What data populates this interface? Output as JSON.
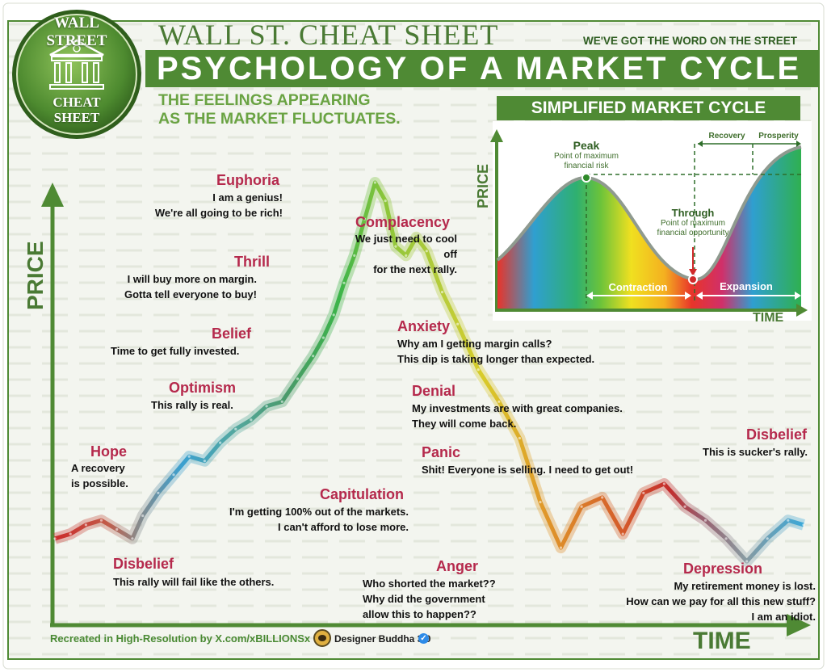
{
  "header": {
    "brand_title": "WALL ST. CHEAT SHEET",
    "tagline": "WE'VE GOT THE WORD ON THE STREET",
    "main_title": "PSYCHOLOGY OF A MARKET CYCLE",
    "subtitle_line1": "THE FEELINGS APPEARING",
    "subtitle_line2": "AS THE MARKET FLUCTUATES."
  },
  "logo": {
    "top_text": "WALL STREET",
    "bottom_line1": "CHEAT",
    "bottom_line2": "SHEET",
    "icon": "building-columns-icon"
  },
  "colors": {
    "brand_green": "#4f8a34",
    "dark_green": "#2f5e22",
    "phase_red": "#b5294c",
    "cycle_start": "#cc2b2b",
    "cycle_peak": "#3cb44a",
    "cycle_low": "#d4c424"
  },
  "chart_data": [
    {
      "type": "line",
      "x_unit": "time (unlabeled)",
      "y_unit": "price (unlabeled)",
      "xlabel": "TIME",
      "ylabel": "PRICE",
      "grid": false,
      "series": [
        {
          "x": [
            0,
            3,
            6,
            9,
            12,
            15,
            17,
            20,
            23,
            26,
            29,
            32,
            35,
            38,
            41,
            44,
            47,
            50,
            52,
            54,
            56,
            58,
            60,
            62,
            64,
            66,
            68,
            70,
            72,
            75,
            78,
            82,
            86,
            90,
            94,
            98,
            102,
            106,
            110,
            114,
            118,
            122,
            126,
            130,
            134,
            138,
            142,
            145
          ],
          "y": [
            8,
            9,
            11,
            12,
            10,
            8,
            13,
            18,
            22,
            26,
            25,
            29,
            32,
            34,
            37,
            38,
            43,
            48,
            52,
            57,
            64,
            70,
            78,
            86,
            82,
            72,
            70,
            74,
            71,
            62,
            55,
            45,
            38,
            30,
            16,
            6,
            15,
            17,
            9,
            18,
            20,
            15,
            12,
            8,
            3,
            8,
            12,
            11
          ]
        }
      ]
    },
    {
      "type": "area",
      "title": "SIMPLIFIED MARKET CYCLE",
      "xlabel": "TIME",
      "ylabel": "PRICE",
      "grid": false,
      "points": [
        {
          "name": "Peak",
          "note": "Point of maximum financial risk"
        },
        {
          "name": "Through",
          "note": "Point of maximum financial opportunity"
        }
      ],
      "phases_bottom": [
        "Contraction",
        "Expansion"
      ],
      "phases_top": [
        "Recovery",
        "Prosperity"
      ]
    }
  ],
  "phases": [
    {
      "name": "Disbelief",
      "quote": [
        "This rally will fail like the others."
      ]
    },
    {
      "name": "Hope",
      "quote": [
        "A recovery",
        "is possible."
      ]
    },
    {
      "name": "Optimism",
      "quote": [
        "This rally is real."
      ]
    },
    {
      "name": "Belief",
      "quote": [
        "Time to get fully invested."
      ]
    },
    {
      "name": "Thrill",
      "quote": [
        "I will buy more on margin.",
        "Gotta tell everyone to buy!"
      ]
    },
    {
      "name": "Euphoria",
      "quote": [
        "I am a genius!",
        "We're all going to be rich!"
      ]
    },
    {
      "name": "Complacency",
      "quote": [
        "We just need to cool off",
        "for the next rally."
      ]
    },
    {
      "name": "Anxiety",
      "quote": [
        "Why am I getting margin calls?",
        "This dip is taking longer than expected."
      ]
    },
    {
      "name": "Denial",
      "quote": [
        "My investments are with great companies.",
        "They will come back."
      ]
    },
    {
      "name": "Panic",
      "quote": [
        "Shit! Everyone is selling. I need to get out!"
      ]
    },
    {
      "name": "Capitulation",
      "quote": [
        "I'm getting 100% out of the markets.",
        "I can't afford to lose more."
      ]
    },
    {
      "name": "Anger",
      "quote": [
        "Who shorted the market??",
        "Why did the government",
        "allow this to happen??"
      ]
    },
    {
      "name": "Depression",
      "quote": [
        "My retirement money is lost.",
        "How can we pay for all this new stuff?",
        "I am an idiot."
      ]
    },
    {
      "name": "Disbelief",
      "quote": [
        "This is sucker's rally."
      ]
    }
  ],
  "footer": {
    "credit": "Recreated in High-Resolution by X.com/xBILLIONSx",
    "designer": "Designer Buddha 3.0",
    "verified_icon": "verified-check-icon",
    "avatar_icon": "avatar-icon"
  }
}
